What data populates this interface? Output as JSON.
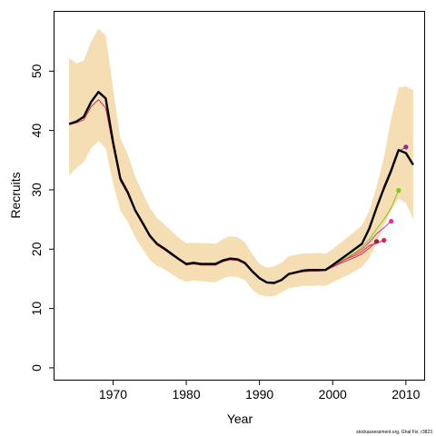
{
  "chart_data": {
    "type": "line",
    "xlabel": "Year",
    "ylabel": "Recruits",
    "xlim": [
      1962,
      2012.5
    ],
    "ylim": [
      -2,
      60
    ],
    "x_ticks": [
      1970,
      1980,
      1990,
      2000,
      2010
    ],
    "y_ticks": [
      0,
      10,
      20,
      30,
      40,
      50
    ],
    "credit": "stockassessment.org, Ghal Fix, r3823",
    "band": {
      "color": "#F5DEB3",
      "x": [
        1964,
        1965,
        1966,
        1967,
        1968,
        1969,
        1970,
        1971,
        1972,
        1973,
        1974,
        1975,
        1976,
        1977,
        1978,
        1979,
        1980,
        1981,
        1982,
        1983,
        1984,
        1985,
        1986,
        1987,
        1988,
        1989,
        1990,
        1991,
        1992,
        1993,
        1994,
        1995,
        1996,
        1997,
        1998,
        1999,
        2000,
        2001,
        2002,
        2003,
        2004,
        2005,
        2006,
        2007,
        2008,
        2009,
        2010,
        2011
      ],
      "upper": [
        52.2,
        51.3,
        51.8,
        55.0,
        57.2,
        56.0,
        47.0,
        38.7,
        36.0,
        32.3,
        29.6,
        27.0,
        25.3,
        24.2,
        23.0,
        21.9,
        21.0,
        21.1,
        21.0,
        21.0,
        20.9,
        21.7,
        22.2,
        22.0,
        21.2,
        19.2,
        17.5,
        16.9,
        17.1,
        17.7,
        18.8,
        19.1,
        19.3,
        19.3,
        19.4,
        19.2,
        20.0,
        21.0,
        22.0,
        23.0,
        24.0,
        26.5,
        30.5,
        35.5,
        42.0,
        47.2,
        47.5,
        46.8
      ],
      "lower": [
        32.4,
        33.7,
        34.7,
        37.0,
        38.2,
        37.0,
        31.0,
        26.5,
        24.6,
        22.0,
        20.1,
        18.2,
        17.2,
        16.6,
        15.8,
        15.0,
        14.5,
        14.7,
        14.6,
        14.5,
        14.4,
        15.1,
        15.4,
        15.3,
        14.8,
        13.2,
        12.3,
        12.0,
        12.1,
        12.7,
        13.4,
        13.6,
        13.8,
        13.8,
        13.9,
        13.8,
        14.4,
        15.0,
        15.6,
        16.3,
        17.0,
        18.5,
        21.0,
        24.0,
        26.5,
        28.5,
        27.8,
        25.0
      ]
    },
    "series": [
      {
        "color": "#000000",
        "x": [
          1964,
          1965,
          1966,
          1967,
          1968,
          1969,
          1970,
          1971,
          1972,
          1973,
          1974,
          1975,
          1976,
          1977,
          1978,
          1979,
          1980,
          1981,
          1982,
          1983,
          1984,
          1985,
          1986,
          1987,
          1988,
          1989,
          1990,
          1991,
          1992,
          1993,
          1994,
          1995,
          1996,
          1997,
          1998,
          1999,
          2000,
          2001,
          2002,
          2003,
          2004,
          2005,
          2006,
          2007,
          2008,
          2009,
          2010,
          2011
        ],
        "values": [
          41.1,
          41.5,
          42.3,
          44.8,
          46.5,
          45.4,
          38.0,
          31.9,
          29.6,
          26.6,
          24.5,
          22.3,
          20.9,
          20.1,
          19.2,
          18.3,
          17.5,
          17.7,
          17.5,
          17.5,
          17.5,
          18.1,
          18.4,
          18.3,
          17.7,
          16.3,
          15.1,
          14.4,
          14.3,
          14.8,
          15.8,
          16.1,
          16.4,
          16.5,
          16.5,
          16.5,
          17.3,
          18.2,
          19.1,
          20.0,
          20.9,
          23.5,
          27.0,
          30.3,
          33.3,
          36.7,
          36.2,
          34.2
        ]
      },
      {
        "color": "#DF2450",
        "x": [
          1964,
          1965,
          1966,
          1967,
          1968,
          1969,
          1970,
          1971,
          1972,
          1973,
          1974,
          1975,
          1976,
          1977,
          1978,
          1979,
          1980,
          1981,
          1982,
          1983,
          1984,
          1985,
          1986,
          1987,
          1988,
          1989,
          1990,
          1991,
          1992,
          1993,
          1994,
          1995,
          1996,
          1997,
          1998,
          1999,
          2000,
          2001,
          2002,
          2003,
          2004,
          2005,
          2006
        ],
        "values": [
          41.0,
          41.3,
          41.8,
          44.0,
          45.2,
          43.8,
          37.3,
          31.5,
          29.3,
          26.4,
          24.3,
          22.1,
          20.7,
          19.9,
          19.0,
          18.2,
          17.3,
          17.5,
          17.3,
          17.3,
          17.3,
          17.9,
          18.2,
          18.1,
          17.5,
          16.1,
          15.0,
          14.3,
          14.2,
          14.7,
          15.7,
          16.0,
          16.2,
          16.3,
          16.3,
          16.4,
          17.0,
          17.6,
          18.1,
          18.6,
          19.2,
          20.2,
          21.3
        ],
        "end_marker": {
          "x": 2006,
          "y": 21.3,
          "color": "#9B1C3C"
        }
      },
      {
        "color": "#E8203C",
        "x": [
          2000,
          2001,
          2002,
          2003,
          2004,
          2005,
          2006,
          2007
        ],
        "values": [
          17.2,
          17.8,
          18.4,
          18.9,
          19.6,
          20.6,
          21.0,
          21.5
        ],
        "end_marker": {
          "x": 2007,
          "y": 21.5,
          "color": "#E8203C"
        }
      },
      {
        "color": "#E62E9E",
        "x": [
          2000,
          2001,
          2002,
          2003,
          2004,
          2005,
          2006,
          2007,
          2008
        ],
        "values": [
          17.1,
          17.8,
          18.5,
          19.2,
          20.0,
          21.2,
          22.6,
          23.6,
          24.7
        ],
        "end_marker": {
          "x": 2008,
          "y": 24.7,
          "color": "#E62E9E"
        }
      },
      {
        "color": "#78D010",
        "x": [
          2000,
          2001,
          2002,
          2003,
          2004,
          2005,
          2006,
          2007,
          2008,
          2009
        ],
        "values": [
          17.2,
          17.9,
          18.6,
          19.4,
          20.3,
          21.7,
          23.4,
          25.0,
          27.0,
          29.9
        ],
        "end_marker": {
          "x": 2009,
          "y": 29.9,
          "color": "#78D010"
        }
      },
      {
        "color": "#8E2A9E",
        "x": [
          2000,
          2001,
          2002,
          2003,
          2004,
          2005,
          2006,
          2007,
          2008,
          2009,
          2010
        ],
        "values": [
          17.3,
          18.1,
          19.0,
          19.9,
          20.8,
          23.3,
          26.8,
          30.0,
          32.9,
          36.5,
          37.2
        ],
        "end_marker": {
          "x": 2010,
          "y": 37.2,
          "color": "#8E2A9E"
        }
      }
    ]
  }
}
